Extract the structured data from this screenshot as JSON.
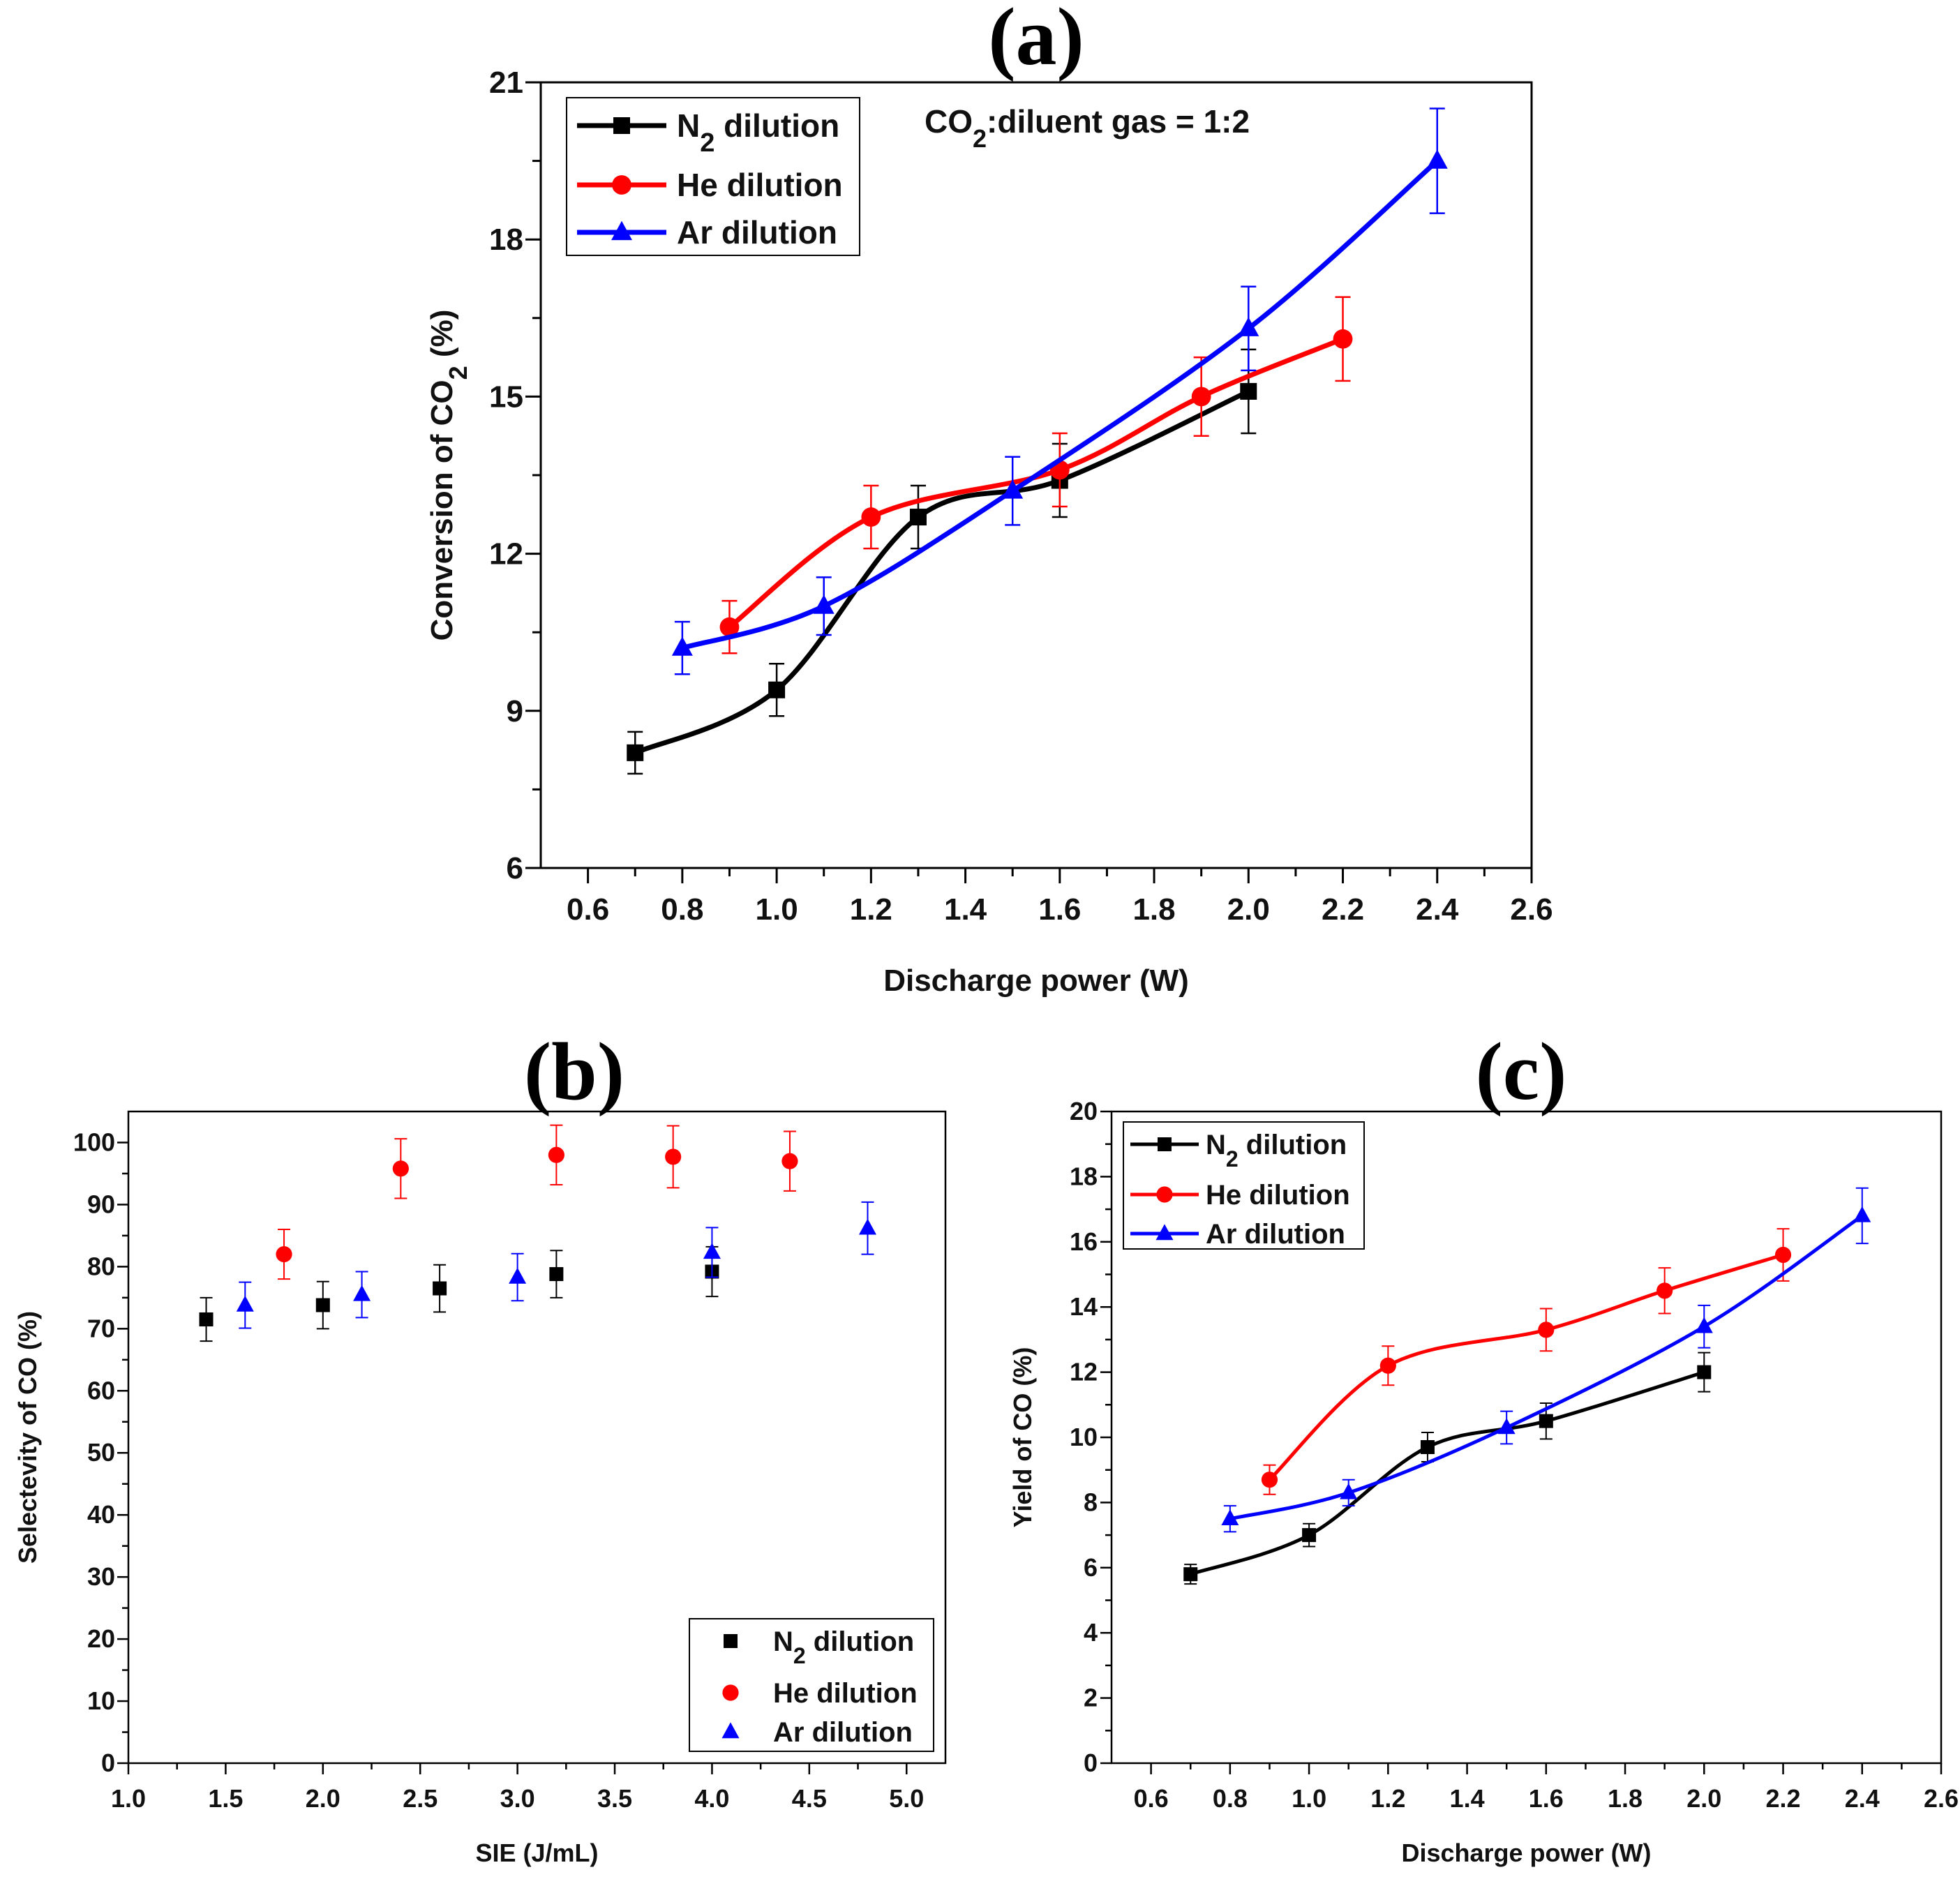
{
  "colors": {
    "n2": "#000000",
    "he": "#ff0000",
    "ar": "#0000ff"
  },
  "chart_data": [
    {
      "panel": "(a)",
      "type": "line",
      "xlabel": "Discharge power (W)",
      "ylabel": "Conversion of CO2 (%)",
      "ylabel_parts": {
        "pre": "Conversion of CO",
        "sub": "2",
        "post": " (%)"
      },
      "xlim": [
        0.5,
        2.6
      ],
      "ylim": [
        6,
        21
      ],
      "xticks": [
        "0.6",
        "0.8",
        "1.0",
        "1.2",
        "1.4",
        "1.6",
        "1.8",
        "2.0",
        "2.2",
        "2.4",
        "2.6"
      ],
      "yticks": [
        "6",
        "9",
        "12",
        "15",
        "18",
        "21"
      ],
      "annotation": {
        "pre": "CO",
        "sub": "2",
        "post": ":diluent gas = 1:2"
      },
      "legend_position": "top-left",
      "series": [
        {
          "key": "n2",
          "name": "N2 dilution",
          "label_pre": "N",
          "label_sub": "2",
          "label_post": " dilution",
          "marker": "square",
          "x": [
            0.7,
            1.0,
            1.3,
            1.6,
            2.0
          ],
          "y": [
            8.2,
            9.4,
            12.7,
            13.4,
            15.1
          ],
          "err": [
            0.4,
            0.5,
            0.6,
            0.7,
            0.8
          ]
        },
        {
          "key": "he",
          "name": "He dilution",
          "label_pre": "He dilution",
          "label_sub": "",
          "label_post": "",
          "marker": "circle",
          "x": [
            0.9,
            1.2,
            1.6,
            1.9,
            2.2
          ],
          "y": [
            10.6,
            12.7,
            13.6,
            15.0,
            16.1
          ],
          "err": [
            0.5,
            0.6,
            0.7,
            0.75,
            0.8
          ]
        },
        {
          "key": "ar",
          "name": "Ar dilution",
          "label_pre": "Ar dilution",
          "label_sub": "",
          "label_post": "",
          "marker": "triangle",
          "x": [
            0.8,
            1.1,
            1.5,
            2.0,
            2.4
          ],
          "y": [
            10.2,
            11.0,
            13.2,
            16.3,
            19.5
          ],
          "err": [
            0.5,
            0.55,
            0.65,
            0.8,
            1.0
          ]
        }
      ]
    },
    {
      "panel": "(b)",
      "type": "scatter",
      "xlabel": "SIE (J/mL)",
      "ylabel": "Selectevity of CO (%)",
      "xlim": [
        1.0,
        5.2
      ],
      "ylim": [
        0,
        105
      ],
      "xticks": [
        "1.0",
        "1.5",
        "2.0",
        "2.5",
        "3.0",
        "3.5",
        "4.0",
        "4.5",
        "5.0"
      ],
      "yticks": [
        "0",
        "10",
        "20",
        "30",
        "40",
        "50",
        "60",
        "70",
        "80",
        "90",
        "100"
      ],
      "legend_position": "bottom-right",
      "series": [
        {
          "key": "n2",
          "name": "N2 dilution",
          "label_pre": "N",
          "label_sub": "2",
          "label_post": " dilution",
          "marker": "square",
          "x": [
            1.4,
            2.0,
            2.6,
            3.2,
            4.0
          ],
          "y": [
            71.5,
            73.8,
            76.5,
            78.8,
            79.2
          ],
          "err": [
            3.5,
            3.8,
            3.8,
            3.8,
            4.0
          ]
        },
        {
          "key": "he",
          "name": "He dilution",
          "label_pre": "He dilution",
          "label_sub": "",
          "label_post": "",
          "marker": "circle",
          "x": [
            1.8,
            2.4,
            3.2,
            3.8,
            4.4
          ],
          "y": [
            82.0,
            95.8,
            98.0,
            97.7,
            97.0
          ],
          "err": [
            4.0,
            4.8,
            4.8,
            5.0,
            4.8
          ]
        },
        {
          "key": "ar",
          "name": "Ar dilution",
          "label_pre": "Ar dilution",
          "label_sub": "",
          "label_post": "",
          "marker": "triangle",
          "x": [
            1.6,
            2.2,
            3.0,
            4.0,
            4.8
          ],
          "y": [
            73.8,
            75.5,
            78.3,
            82.3,
            86.2
          ],
          "err": [
            3.7,
            3.7,
            3.8,
            4.0,
            4.2
          ]
        }
      ]
    },
    {
      "panel": "(c)",
      "type": "line",
      "xlabel": "Discharge power (W)",
      "ylabel": "Yield of CO (%)",
      "xlim": [
        0.5,
        2.6
      ],
      "ylim": [
        0,
        20
      ],
      "xticks": [
        "0.6",
        "0.8",
        "1.0",
        "1.2",
        "1.4",
        "1.6",
        "1.8",
        "2.0",
        "2.2",
        "2.4",
        "2.6"
      ],
      "yticks": [
        "0",
        "2",
        "4",
        "6",
        "8",
        "10",
        "12",
        "14",
        "16",
        "18",
        "20"
      ],
      "legend_position": "top-left",
      "series": [
        {
          "key": "n2",
          "name": "N2 dilution",
          "label_pre": "N",
          "label_sub": "2",
          "label_post": " dilution",
          "marker": "square",
          "x": [
            0.7,
            1.0,
            1.3,
            1.6,
            2.0
          ],
          "y": [
            5.8,
            7.0,
            9.7,
            10.5,
            12.0
          ],
          "err": [
            0.3,
            0.35,
            0.45,
            0.55,
            0.6
          ]
        },
        {
          "key": "he",
          "name": "He dilution",
          "label_pre": "He dilution",
          "label_sub": "",
          "label_post": "",
          "marker": "circle",
          "x": [
            0.9,
            1.2,
            1.6,
            1.9,
            2.2
          ],
          "y": [
            8.7,
            12.2,
            13.3,
            14.5,
            15.6
          ],
          "err": [
            0.45,
            0.6,
            0.65,
            0.7,
            0.8
          ]
        },
        {
          "key": "ar",
          "name": "Ar dilution",
          "label_pre": "Ar dilution",
          "label_sub": "",
          "label_post": "",
          "marker": "triangle",
          "x": [
            0.8,
            1.1,
            1.5,
            2.0,
            2.4
          ],
          "y": [
            7.5,
            8.3,
            10.3,
            13.4,
            16.8
          ],
          "err": [
            0.4,
            0.4,
            0.5,
            0.65,
            0.85
          ]
        }
      ]
    }
  ]
}
